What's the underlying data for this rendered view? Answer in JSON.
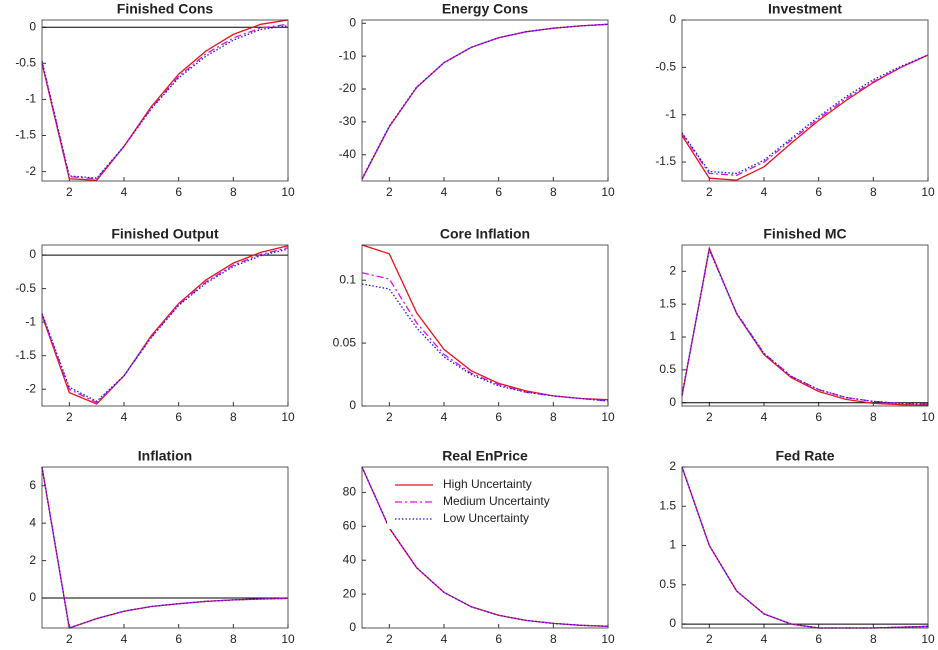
{
  "chart_data": [
    {
      "type": "line",
      "title": "Finished Cons",
      "x": [
        1,
        2,
        3,
        4,
        5,
        6,
        7,
        8,
        9,
        10
      ],
      "xlim": [
        1,
        10
      ],
      "xticks": [
        2,
        4,
        6,
        8,
        10
      ],
      "ylim": [
        -2.13,
        0.1
      ],
      "yticks": [
        0,
        -0.5,
        -1,
        -1.5,
        -2
      ],
      "zero_line": true,
      "series": [
        {
          "color": "#e8141c",
          "style": "solid",
          "values": [
            -0.5,
            -2.1,
            -2.12,
            -1.65,
            -1.1,
            -0.65,
            -0.33,
            -0.1,
            0.04,
            0.1
          ]
        },
        {
          "color": "#e010e0",
          "style": "dashdot",
          "values": [
            -0.48,
            -2.07,
            -2.1,
            -1.65,
            -1.12,
            -0.68,
            -0.37,
            -0.15,
            -0.01,
            0.04
          ]
        },
        {
          "color": "#1a1ae0",
          "style": "dotted",
          "values": [
            -0.47,
            -2.06,
            -2.09,
            -1.65,
            -1.13,
            -0.7,
            -0.4,
            -0.18,
            -0.03,
            0.02
          ]
        }
      ]
    },
    {
      "type": "line",
      "title": "Energy Cons",
      "x": [
        1,
        2,
        3,
        4,
        5,
        6,
        7,
        8,
        9,
        10
      ],
      "xlim": [
        1,
        10
      ],
      "xticks": [
        2,
        4,
        6,
        8,
        10
      ],
      "ylim": [
        -48,
        1
      ],
      "yticks": [
        0,
        -10,
        -20,
        -30,
        -40
      ],
      "zero_line": false,
      "series": [
        {
          "color": "#e8141c",
          "style": "solid",
          "values": [
            -47.5,
            -31.5,
            -19.5,
            -12,
            -7.3,
            -4.4,
            -2.6,
            -1.5,
            -0.8,
            -0.3
          ]
        },
        {
          "color": "#e010e0",
          "style": "dashdot",
          "values": [
            -47.4,
            -31.4,
            -19.5,
            -12,
            -7.3,
            -4.4,
            -2.6,
            -1.5,
            -0.8,
            -0.3
          ]
        },
        {
          "color": "#1a1ae0",
          "style": "dotted",
          "values": [
            -47.3,
            -31.3,
            -19.4,
            -12,
            -7.3,
            -4.4,
            -2.6,
            -1.5,
            -0.8,
            -0.3
          ]
        }
      ]
    },
    {
      "type": "line",
      "title": "Investment",
      "x": [
        1,
        2,
        3,
        4,
        5,
        6,
        7,
        8,
        9,
        10
      ],
      "xlim": [
        1,
        10
      ],
      "xticks": [
        2,
        4,
        6,
        8,
        10
      ],
      "ylim": [
        -1.7,
        0
      ],
      "yticks": [
        0,
        -0.5,
        -1,
        -1.5
      ],
      "zero_line": false,
      "series": [
        {
          "color": "#e8141c",
          "style": "solid",
          "values": [
            -1.22,
            -1.67,
            -1.69,
            -1.55,
            -1.3,
            -1.06,
            -0.85,
            -0.66,
            -0.5,
            -0.37
          ]
        },
        {
          "color": "#e010e0",
          "style": "dashdot",
          "values": [
            -1.2,
            -1.62,
            -1.64,
            -1.5,
            -1.27,
            -1.04,
            -0.83,
            -0.65,
            -0.5,
            -0.37
          ]
        },
        {
          "color": "#1a1ae0",
          "style": "dotted",
          "values": [
            -1.19,
            -1.6,
            -1.62,
            -1.48,
            -1.25,
            -1.02,
            -0.81,
            -0.63,
            -0.49,
            -0.37
          ]
        }
      ]
    },
    {
      "type": "line",
      "title": "Finished Output",
      "x": [
        1,
        2,
        3,
        4,
        5,
        6,
        7,
        8,
        9,
        10
      ],
      "xlim": [
        1,
        10
      ],
      "xticks": [
        2,
        4,
        6,
        8,
        10
      ],
      "ylim": [
        -2.25,
        0.15
      ],
      "yticks": [
        0,
        -0.5,
        -1,
        -1.5,
        -2
      ],
      "zero_line": true,
      "series": [
        {
          "color": "#e8141c",
          "style": "solid",
          "values": [
            -0.9,
            -2.05,
            -2.22,
            -1.8,
            -1.2,
            -0.72,
            -0.37,
            -0.12,
            0.04,
            0.14
          ]
        },
        {
          "color": "#e010e0",
          "style": "dashdot",
          "values": [
            -0.88,
            -2.0,
            -2.2,
            -1.8,
            -1.22,
            -0.74,
            -0.4,
            -0.15,
            0.01,
            0.11
          ]
        },
        {
          "color": "#1a1ae0",
          "style": "dotted",
          "values": [
            -0.87,
            -1.97,
            -2.18,
            -1.8,
            -1.23,
            -0.75,
            -0.42,
            -0.17,
            -0.01,
            0.09
          ]
        }
      ]
    },
    {
      "type": "line",
      "title": "Core Inflation",
      "x": [
        1,
        2,
        3,
        4,
        5,
        6,
        7,
        8,
        9,
        10
      ],
      "xlim": [
        1,
        10
      ],
      "xticks": [
        2,
        4,
        6,
        8,
        10
      ],
      "ylim": [
        0,
        0.128
      ],
      "yticks": [
        0,
        0.05,
        0.1
      ],
      "zero_line": false,
      "series": [
        {
          "color": "#e8141c",
          "style": "solid",
          "values": [
            0.128,
            0.121,
            0.074,
            0.045,
            0.028,
            0.018,
            0.012,
            0.008,
            0.006,
            0.005
          ]
        },
        {
          "color": "#e010e0",
          "style": "dashdot",
          "values": [
            0.106,
            0.101,
            0.066,
            0.041,
            0.026,
            0.017,
            0.011,
            0.008,
            0.006,
            0.004
          ]
        },
        {
          "color": "#1a1ae0",
          "style": "dotted",
          "values": [
            0.097,
            0.093,
            0.062,
            0.039,
            0.025,
            0.016,
            0.011,
            0.008,
            0.006,
            0.004
          ]
        }
      ]
    },
    {
      "type": "line",
      "title": "Finished MC",
      "x": [
        1,
        2,
        3,
        4,
        5,
        6,
        7,
        8,
        9,
        10
      ],
      "xlim": [
        1,
        10
      ],
      "xticks": [
        2,
        4,
        6,
        8,
        10
      ],
      "ylim": [
        -0.05,
        2.4
      ],
      "yticks": [
        0,
        0.5,
        1,
        1.5,
        2
      ],
      "zero_line": true,
      "series": [
        {
          "color": "#e8141c",
          "style": "solid",
          "values": [
            0.1,
            2.35,
            1.35,
            0.73,
            0.38,
            0.17,
            0.05,
            -0.01,
            -0.03,
            -0.04
          ]
        },
        {
          "color": "#e010e0",
          "style": "dashdot",
          "values": [
            0.12,
            2.33,
            1.36,
            0.75,
            0.4,
            0.2,
            0.08,
            0.02,
            -0.01,
            -0.02
          ]
        },
        {
          "color": "#1a1ae0",
          "style": "dotted",
          "values": [
            0.12,
            2.33,
            1.36,
            0.75,
            0.4,
            0.2,
            0.08,
            0.02,
            -0.01,
            -0.02
          ]
        }
      ]
    },
    {
      "type": "line",
      "title": "Inflation",
      "x": [
        1,
        2,
        3,
        4,
        5,
        6,
        7,
        8,
        9,
        10
      ],
      "xlim": [
        1,
        10
      ],
      "xticks": [
        2,
        4,
        6,
        8,
        10
      ],
      "ylim": [
        -1.6,
        7
      ],
      "yticks": [
        0,
        2,
        4,
        6
      ],
      "zero_line": true,
      "series": [
        {
          "color": "#e8141c",
          "style": "solid",
          "values": [
            7,
            -1.6,
            -1.1,
            -0.7,
            -0.45,
            -0.3,
            -0.18,
            -0.1,
            -0.05,
            -0.02
          ]
        },
        {
          "color": "#e010e0",
          "style": "dashdot",
          "values": [
            7,
            -1.6,
            -1.1,
            -0.7,
            -0.45,
            -0.3,
            -0.18,
            -0.1,
            -0.05,
            -0.02
          ]
        },
        {
          "color": "#1a1ae0",
          "style": "dotted",
          "values": [
            7,
            -1.6,
            -1.1,
            -0.7,
            -0.45,
            -0.3,
            -0.18,
            -0.1,
            -0.05,
            -0.02
          ]
        }
      ]
    },
    {
      "type": "line",
      "title": "Real EnPrice",
      "x": [
        1,
        2,
        3,
        4,
        5,
        6,
        7,
        8,
        9,
        10
      ],
      "xlim": [
        1,
        10
      ],
      "xticks": [
        2,
        4,
        6,
        8,
        10
      ],
      "ylim": [
        0,
        95
      ],
      "yticks": [
        0,
        20,
        40,
        60,
        80
      ],
      "zero_line": false,
      "legend": "north",
      "series": [
        {
          "name": "High Uncertainty",
          "color": "#e8141c",
          "style": "solid",
          "values": [
            95,
            59,
            35.5,
            21,
            12.5,
            7.5,
            4.5,
            2.7,
            1.6,
            1.0
          ]
        },
        {
          "name": "Medium Uncertainty",
          "color": "#e010e0",
          "style": "dashdot",
          "values": [
            95,
            59,
            35.5,
            21,
            12.5,
            7.5,
            4.5,
            2.7,
            1.6,
            1.0
          ]
        },
        {
          "name": "Low Uncertainty",
          "color": "#1a1ae0",
          "style": "dotted",
          "values": [
            95,
            59,
            35.5,
            21,
            12.5,
            7.5,
            4.5,
            2.7,
            1.6,
            1.0
          ]
        }
      ]
    },
    {
      "type": "line",
      "title": "Fed Rate",
      "x": [
        1,
        2,
        3,
        4,
        5,
        6,
        7,
        8,
        9,
        10
      ],
      "xlim": [
        1,
        10
      ],
      "xticks": [
        2,
        4,
        6,
        8,
        10
      ],
      "ylim": [
        -0.05,
        2
      ],
      "yticks": [
        0,
        0.5,
        1,
        1.5,
        2
      ],
      "zero_line": true,
      "series": [
        {
          "color": "#e8141c",
          "style": "solid",
          "values": [
            2,
            1.0,
            0.42,
            0.13,
            0.0,
            -0.05,
            -0.05,
            -0.05,
            -0.04,
            -0.03
          ]
        },
        {
          "color": "#e010e0",
          "style": "dashdot",
          "values": [
            2,
            1.0,
            0.42,
            0.13,
            0.0,
            -0.05,
            -0.05,
            -0.05,
            -0.04,
            -0.03
          ]
        },
        {
          "color": "#1a1ae0",
          "style": "dotted",
          "values": [
            2,
            1.0,
            0.42,
            0.13,
            0.0,
            -0.05,
            -0.05,
            -0.05,
            -0.04,
            -0.03
          ]
        }
      ]
    }
  ]
}
